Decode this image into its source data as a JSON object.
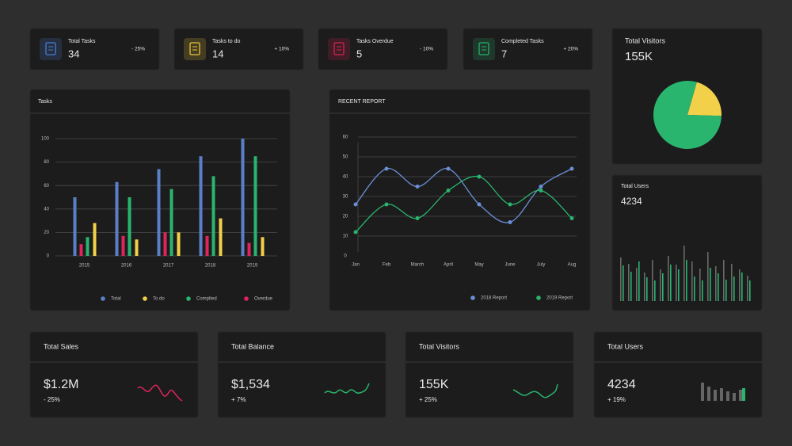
{
  "stat_cards": [
    {
      "title": "Total Tasks",
      "value": "34",
      "change": "- 25%",
      "color": "#4a7bd0"
    },
    {
      "title": "Tasks to do",
      "value": "14",
      "change": "+ 10%",
      "color": "#e8c23a"
    },
    {
      "title": "Tasks Overdue",
      "value": "5",
      "change": "- 10%",
      "color": "#d0244f"
    },
    {
      "title": "Completed Tasks",
      "value": "7",
      "change": "+ 20%",
      "color": "#27b06b"
    }
  ],
  "chart_data": [
    {
      "type": "bar",
      "title": "Tasks",
      "categories": [
        "2015",
        "2016",
        "2017",
        "2018",
        "2019"
      ],
      "series": [
        {
          "name": "Total",
          "color": "#5b7fc7",
          "values": [
            50,
            63,
            74,
            85,
            100
          ]
        },
        {
          "name": "To do",
          "color": "#f2d04a",
          "values": [
            28,
            14,
            20,
            32,
            16
          ]
        },
        {
          "name": "Complted",
          "color": "#2ab56e",
          "values": [
            16,
            50,
            57,
            68,
            85
          ]
        },
        {
          "name": "Overdue",
          "color": "#e0245e",
          "values": [
            10,
            17,
            20,
            17,
            11
          ]
        }
      ],
      "ylim": [
        0,
        100
      ],
      "yticks": [
        0,
        20,
        40,
        60,
        80,
        100
      ],
      "grid": true,
      "legend": "bottom"
    },
    {
      "type": "line",
      "title": "RECENT REPORT",
      "categories": [
        "Jan",
        "Feb",
        "March",
        "April",
        "May",
        "June",
        "July",
        "Aug"
      ],
      "series": [
        {
          "name": "2018 Report",
          "color": "#6b8fd6",
          "values": [
            26,
            44,
            35,
            44,
            26,
            17,
            35,
            44
          ]
        },
        {
          "name": "2019 Report",
          "color": "#2ab56e",
          "values": [
            12,
            26,
            19,
            33,
            40,
            26,
            33,
            19
          ]
        }
      ],
      "ylim": [
        0,
        60
      ],
      "yticks": [
        0,
        10,
        20,
        30,
        40,
        50,
        60
      ],
      "grid": true,
      "legend": "bottom"
    },
    {
      "type": "pie",
      "title": "Total Visitors",
      "subtitle": "155K",
      "values": [
        21,
        79
      ],
      "colors": [
        "#f2d04a",
        "#2ab56e"
      ]
    },
    {
      "type": "pairbar",
      "title": "Total Users",
      "subtitle": "4234",
      "ylim": [
        0,
        80
      ],
      "series": [
        {
          "color": "#6a6a6a",
          "values": [
            55,
            47,
            42,
            36,
            52,
            40,
            57,
            46,
            70,
            50,
            41,
            62,
            44,
            52,
            47,
            40,
            32
          ]
        },
        {
          "color": "#2ab56e",
          "values": [
            45,
            37,
            50,
            30,
            26,
            35,
            46,
            40,
            52,
            31,
            26,
            42,
            35,
            27,
            31,
            36,
            26
          ]
        }
      ]
    }
  ],
  "summary_cards": [
    {
      "title": "Total Sales",
      "value": "$1.2M",
      "change": "- 25%"
    },
    {
      "title": "Total Balance",
      "value": "$1,534",
      "change": "+ 7%"
    },
    {
      "title": "Total Visitors",
      "value": "155K",
      "change": "+ 25%"
    },
    {
      "title": "Total Users",
      "value": "4234",
      "change": "+ 19%"
    }
  ]
}
